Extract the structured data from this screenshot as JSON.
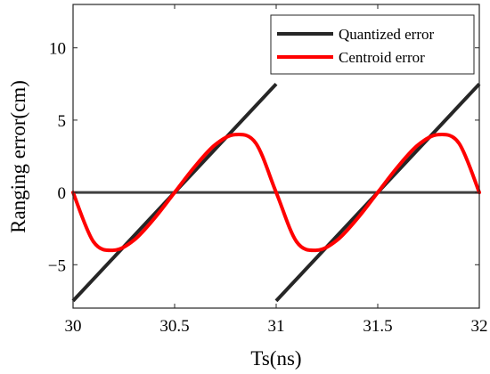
{
  "chart_data": {
    "type": "line",
    "xlabel": "Ts(ns)",
    "ylabel": "Ranging error(cm)",
    "xlim": [
      30,
      32
    ],
    "ylim": [
      -8,
      13
    ],
    "xticks": [
      30,
      30.5,
      31,
      31.5,
      32
    ],
    "xtick_labels": [
      "30",
      "30.5",
      "31",
      "31.5",
      "32"
    ],
    "yticks": [
      -5,
      0,
      5,
      10
    ],
    "ytick_labels": [
      "−5",
      "0",
      "5",
      "10"
    ],
    "grid": false,
    "legend_position": "top-right",
    "series": [
      {
        "name": "Quantized error",
        "color": "#262626",
        "segments": [
          [
            [
              30,
              -7.5
            ],
            [
              31,
              7.5
            ]
          ],
          [
            [
              31,
              -7.5
            ],
            [
              32,
              7.5
            ]
          ]
        ]
      },
      {
        "name": "Centroid error",
        "color": "#ff0000",
        "x": [
          30,
          30.1,
          30.2,
          30.3,
          30.4,
          30.5,
          30.6,
          30.7,
          30.8,
          30.9,
          31,
          31.1,
          31.2,
          31.3,
          31.4,
          31.5,
          31.6,
          31.7,
          31.8,
          31.9,
          32
        ],
        "values": [
          0,
          -3.4,
          -4.0,
          -3.3,
          -1.8,
          0,
          1.8,
          3.3,
          4.0,
          3.4,
          0,
          -3.4,
          -4.0,
          -3.3,
          -1.8,
          0,
          1.8,
          3.3,
          4.0,
          3.4,
          0
        ]
      },
      {
        "color": "#404040",
        "x": [
          30,
          32
        ],
        "values": [
          0,
          0
        ]
      }
    ]
  }
}
